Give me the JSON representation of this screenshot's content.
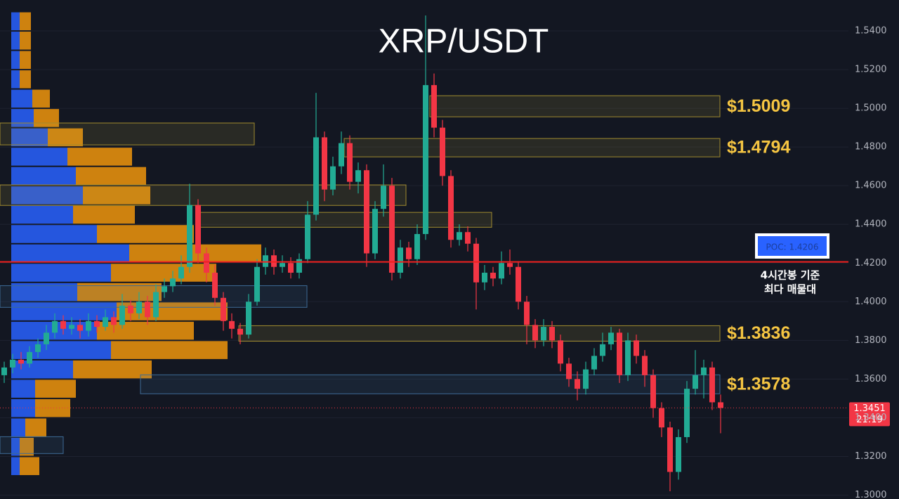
{
  "chart_data": {
    "type": "candlestick",
    "title": "XRP/USDT",
    "ylim": [
      1.298,
      1.556
    ],
    "yticks": [
      {
        "value": 1.54,
        "label": "1.5400"
      },
      {
        "value": 1.52,
        "label": "1.5200"
      },
      {
        "value": 1.5,
        "label": "1.5000"
      },
      {
        "value": 1.48,
        "label": "1.4800"
      },
      {
        "value": 1.46,
        "label": "1.4600"
      },
      {
        "value": 1.44,
        "label": "1.4400"
      },
      {
        "value": 1.42,
        "label": "1.4200"
      },
      {
        "value": 1.4,
        "label": "1.4000"
      },
      {
        "value": 1.38,
        "label": "1.3800"
      },
      {
        "value": 1.36,
        "label": "1.3600"
      },
      {
        "value": 1.34,
        "label": "1.3400"
      },
      {
        "value": 1.32,
        "label": "1.3200"
      },
      {
        "value": 1.3,
        "label": "1.3000"
      }
    ],
    "grid": true,
    "up_color": "#22ab94",
    "down_color": "#f23645",
    "candles": [
      [
        1.362,
        1.369,
        1.358,
        1.366
      ],
      [
        1.366,
        1.373,
        1.363,
        1.37
      ],
      [
        1.37,
        1.374,
        1.365,
        1.368
      ],
      [
        1.368,
        1.377,
        1.366,
        1.374
      ],
      [
        1.374,
        1.381,
        1.371,
        1.378
      ],
      [
        1.378,
        1.388,
        1.375,
        1.384
      ],
      [
        1.384,
        1.394,
        1.381,
        1.39
      ],
      [
        1.39,
        1.393,
        1.383,
        1.386
      ],
      [
        1.386,
        1.392,
        1.383,
        1.388
      ],
      [
        1.388,
        1.391,
        1.381,
        1.385
      ],
      [
        1.385,
        1.394,
        1.382,
        1.39
      ],
      [
        1.39,
        1.393,
        1.384,
        1.387
      ],
      [
        1.387,
        1.396,
        1.385,
        1.392
      ],
      [
        1.392,
        1.395,
        1.384,
        1.388
      ],
      [
        1.388,
        1.404,
        1.386,
        1.398
      ],
      [
        1.398,
        1.401,
        1.39,
        1.394
      ],
      [
        1.394,
        1.405,
        1.391,
        1.4
      ],
      [
        1.4,
        1.403,
        1.388,
        1.392
      ],
      [
        1.392,
        1.409,
        1.39,
        1.405
      ],
      [
        1.405,
        1.412,
        1.402,
        1.408
      ],
      [
        1.408,
        1.416,
        1.405,
        1.412
      ],
      [
        1.412,
        1.424,
        1.409,
        1.418
      ],
      [
        1.418,
        1.461,
        1.415,
        1.45
      ],
      [
        1.45,
        1.453,
        1.42,
        1.425
      ],
      [
        1.425,
        1.428,
        1.41,
        1.415
      ],
      [
        1.415,
        1.419,
        1.398,
        1.402
      ],
      [
        1.402,
        1.405,
        1.385,
        1.39
      ],
      [
        1.39,
        1.394,
        1.381,
        1.386
      ],
      [
        1.386,
        1.389,
        1.378,
        1.383
      ],
      [
        1.383,
        1.404,
        1.381,
        1.4
      ],
      [
        1.4,
        1.422,
        1.398,
        1.418
      ],
      [
        1.418,
        1.428,
        1.414,
        1.424
      ],
      [
        1.424,
        1.427,
        1.414,
        1.418
      ],
      [
        1.418,
        1.424,
        1.415,
        1.42
      ],
      [
        1.42,
        1.423,
        1.412,
        1.415
      ],
      [
        1.415,
        1.425,
        1.412,
        1.422
      ],
      [
        1.422,
        1.452,
        1.42,
        1.445
      ],
      [
        1.445,
        1.508,
        1.442,
        1.485
      ],
      [
        1.485,
        1.488,
        1.452,
        1.458
      ],
      [
        1.458,
        1.475,
        1.455,
        1.47
      ],
      [
        1.47,
        1.488,
        1.466,
        1.482
      ],
      [
        1.482,
        1.486,
        1.458,
        1.462
      ],
      [
        1.462,
        1.472,
        1.456,
        1.468
      ],
      [
        1.468,
        1.471,
        1.418,
        1.425
      ],
      [
        1.425,
        1.452,
        1.422,
        1.448
      ],
      [
        1.448,
        1.471,
        1.444,
        1.46
      ],
      [
        1.46,
        1.464,
        1.411,
        1.415
      ],
      [
        1.415,
        1.432,
        1.412,
        1.428
      ],
      [
        1.428,
        1.431,
        1.418,
        1.422
      ],
      [
        1.422,
        1.44,
        1.419,
        1.435
      ],
      [
        1.435,
        1.548,
        1.432,
        1.512
      ],
      [
        1.512,
        1.518,
        1.485,
        1.49
      ],
      [
        1.49,
        1.494,
        1.46,
        1.465
      ],
      [
        1.465,
        1.468,
        1.428,
        1.432
      ],
      [
        1.432,
        1.44,
        1.429,
        1.436
      ],
      [
        1.436,
        1.439,
        1.426,
        1.43
      ],
      [
        1.43,
        1.433,
        1.396,
        1.41
      ],
      [
        1.41,
        1.419,
        1.406,
        1.415
      ],
      [
        1.415,
        1.418,
        1.408,
        1.412
      ],
      [
        1.412,
        1.426,
        1.409,
        1.42
      ],
      [
        1.42,
        1.427,
        1.414,
        1.418
      ],
      [
        1.418,
        1.421,
        1.396,
        1.4
      ],
      [
        1.4,
        1.403,
        1.378,
        1.388
      ],
      [
        1.388,
        1.391,
        1.376,
        1.38
      ],
      [
        1.38,
        1.391,
        1.377,
        1.387
      ],
      [
        1.387,
        1.39,
        1.376,
        1.38
      ],
      [
        1.38,
        1.383,
        1.364,
        1.368
      ],
      [
        1.368,
        1.371,
        1.356,
        1.36
      ],
      [
        1.36,
        1.364,
        1.349,
        1.355
      ],
      [
        1.355,
        1.369,
        1.352,
        1.365
      ],
      [
        1.365,
        1.376,
        1.362,
        1.372
      ],
      [
        1.372,
        1.384,
        1.369,
        1.378
      ],
      [
        1.378,
        1.387,
        1.375,
        1.384
      ],
      [
        1.384,
        1.386,
        1.358,
        1.362
      ],
      [
        1.362,
        1.384,
        1.359,
        1.38
      ],
      [
        1.38,
        1.383,
        1.368,
        1.372
      ],
      [
        1.372,
        1.375,
        1.356,
        1.362
      ],
      [
        1.362,
        1.365,
        1.34,
        1.345
      ],
      [
        1.345,
        1.348,
        1.33,
        1.335
      ],
      [
        1.335,
        1.338,
        1.302,
        1.312
      ],
      [
        1.312,
        1.334,
        1.308,
        1.33
      ],
      [
        1.33,
        1.359,
        1.327,
        1.355
      ],
      [
        1.355,
        1.375,
        1.352,
        1.362
      ],
      [
        1.362,
        1.37,
        1.35,
        1.366
      ],
      [
        1.366,
        1.369,
        1.344,
        1.348
      ],
      [
        1.348,
        1.352,
        1.332,
        1.3451
      ]
    ],
    "volume_profile": {
      "levels": [
        1.545,
        1.535,
        1.525,
        1.515,
        1.505,
        1.495,
        1.485,
        1.475,
        1.465,
        1.455,
        1.445,
        1.435,
        1.425,
        1.415,
        1.405,
        1.395,
        1.385,
        1.375,
        1.365,
        1.355,
        1.345,
        1.335,
        1.325,
        1.315
      ],
      "buy": [
        12,
        12,
        12,
        12,
        30,
        32,
        52,
        80,
        92,
        102,
        88,
        122,
        168,
        142,
        94,
        150,
        122,
        142,
        88,
        34,
        34,
        20,
        12,
        12
      ],
      "sell": [
        16,
        16,
        16,
        16,
        25,
        36,
        50,
        92,
        100,
        96,
        88,
        138,
        188,
        150,
        120,
        158,
        138,
        166,
        112,
        58,
        50,
        30,
        20,
        28
      ],
      "buy_color": "#2962ff",
      "sell_color": "#f0950c"
    },
    "zones": [
      {
        "label": "$1.5009",
        "high": 1.5065,
        "low": 1.4956
      },
      {
        "label": "$1.4794",
        "high": 1.4844,
        "low": 1.4749
      },
      {
        "label": "$1.3836",
        "high": 1.3876,
        "low": 1.3796
      },
      {
        "label": "$1.3578",
        "high": 1.3622,
        "low": 1.3524
      },
      {
        "high": 1.4924,
        "low": 1.4811
      },
      {
        "high": 1.4604,
        "low": 1.4498
      },
      {
        "high": 1.4462,
        "low": 1.4385
      },
      {
        "high": 1.4083,
        "low": 1.3971
      },
      {
        "high": 1.3302,
        "low": 1.3215
      }
    ],
    "poc": {
      "label": "POC: 1.4206",
      "value": 1.4206,
      "color": "#f0201f"
    },
    "notes": [
      "4시간봉 기준",
      "최다 매물대"
    ],
    "last_price": 1.3451,
    "countdown": "21:19"
  }
}
